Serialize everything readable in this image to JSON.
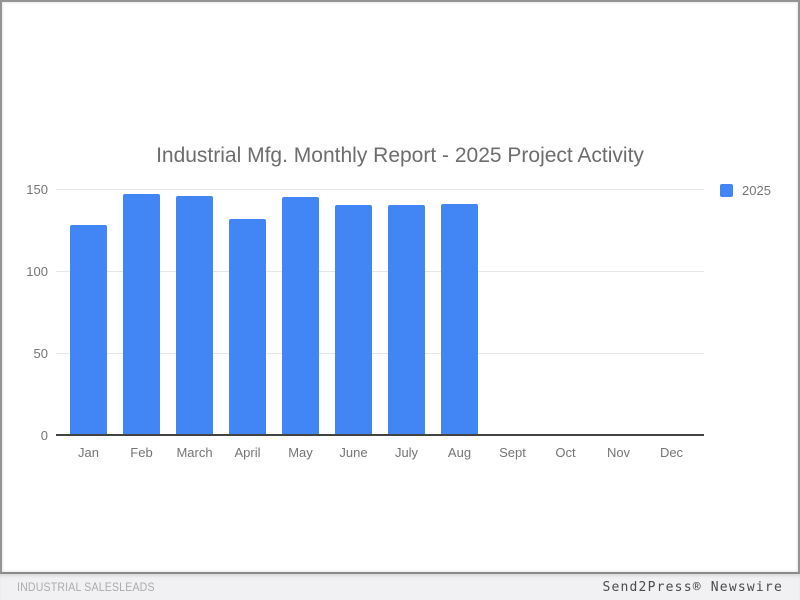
{
  "chart_data": {
    "type": "bar",
    "title": "Industrial Mfg. Monthly Report - 2025 Project Activity",
    "categories": [
      "Jan",
      "Feb",
      "March",
      "April",
      "May",
      "June",
      "July",
      "Aug",
      "Sept",
      "Oct",
      "Nov",
      "Dec"
    ],
    "series": [
      {
        "name": "2025",
        "values": [
          128,
          147,
          146,
          132,
          145,
          140,
          140,
          141,
          null,
          null,
          null,
          null
        ]
      }
    ],
    "xlabel": "",
    "ylabel": "",
    "ylim": [
      0,
      150
    ],
    "yticks": [
      0,
      50,
      100,
      150
    ],
    "grid": true,
    "legend_position": "right",
    "bar_color": "#4285f4",
    "axis_text_color": "#757575",
    "title_color": "#6d6d6d",
    "gridline_color": "#e6e6e6",
    "baseline_color": "#424242"
  },
  "footer": {
    "left_text": "INDUSTRIAL SALESLEADS",
    "right_text": "Send2Press® Newswire"
  }
}
